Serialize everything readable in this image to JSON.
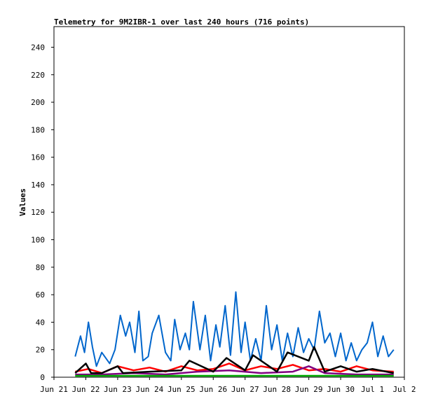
{
  "chart_data": {
    "type": "line",
    "title": "Telemetry for 9M2IBR-1 over last 240 hours (716 points)",
    "ylabel": "Values",
    "xlabel": "",
    "ylim": [
      0,
      255
    ],
    "xlim": [
      "2024-06-21",
      "2024-07-02"
    ],
    "yticks": [
      0,
      20,
      40,
      60,
      80,
      100,
      120,
      140,
      160,
      180,
      200,
      220,
      240
    ],
    "xticks": [
      "Jun 21",
      "Jun 22",
      "Jun 23",
      "Jun 24",
      "Jun 25",
      "Jun 26",
      "Jun 27",
      "Jun 28",
      "Jun 29",
      "Jun 30",
      "Jul 1",
      "Jul 2"
    ],
    "grid": false,
    "legend": "none",
    "series": [
      {
        "color": "#0066cc",
        "x": [
          "2024-06-21T16:00",
          "2024-06-21T20:00",
          "2024-06-21T23:00",
          "2024-06-22T02:00",
          "2024-06-22T05:00",
          "2024-06-22T08:00",
          "2024-06-22T12:00",
          "2024-06-22T18:00",
          "2024-06-22T22:00",
          "2024-06-23T02:00",
          "2024-06-23T06:00",
          "2024-06-23T09:00",
          "2024-06-23T13:00",
          "2024-06-23T16:00",
          "2024-06-23T19:00",
          "2024-06-23T23:00",
          "2024-06-24T02:00",
          "2024-06-24T07:00",
          "2024-06-24T12:00",
          "2024-06-24T16:00",
          "2024-06-24T19:00",
          "2024-06-24T23:00",
          "2024-06-25T03:00",
          "2024-06-25T06:00",
          "2024-06-25T09:00",
          "2024-06-25T14:00",
          "2024-06-25T18:00",
          "2024-06-25T22:00",
          "2024-06-26T02:00",
          "2024-06-26T05:00",
          "2024-06-26T09:00",
          "2024-06-26T13:00",
          "2024-06-26T17:00",
          "2024-06-26T21:00",
          "2024-06-27T00:00",
          "2024-06-27T04:00",
          "2024-06-27T08:00",
          "2024-06-27T12:00",
          "2024-06-27T16:00",
          "2024-06-27T20:00",
          "2024-06-28T00:00",
          "2024-06-28T04:00",
          "2024-06-28T08:00",
          "2024-06-28T12:00",
          "2024-06-28T16:00",
          "2024-06-28T20:00",
          "2024-06-29T00:00",
          "2024-06-29T04:00",
          "2024-06-29T08:00",
          "2024-06-29T12:00",
          "2024-06-29T16:00",
          "2024-06-29T20:00",
          "2024-06-30T00:00",
          "2024-06-30T04:00",
          "2024-06-30T08:00",
          "2024-06-30T12:00",
          "2024-06-30T16:00",
          "2024-06-30T20:00",
          "2024-07-01T00:00",
          "2024-07-01T04:00",
          "2024-07-01T08:00",
          "2024-07-01T12:00",
          "2024-07-01T16:00"
        ],
        "y": [
          15,
          30,
          18,
          40,
          22,
          8,
          18,
          10,
          20,
          45,
          30,
          40,
          18,
          48,
          12,
          15,
          32,
          45,
          18,
          12,
          42,
          20,
          32,
          20,
          55,
          20,
          45,
          12,
          38,
          22,
          52,
          16,
          62,
          18,
          40,
          12,
          28,
          12,
          52,
          20,
          38,
          12,
          32,
          15,
          36,
          18,
          28,
          20,
          48,
          25,
          32,
          15,
          32,
          12,
          25,
          12,
          20,
          25,
          40,
          15,
          30,
          15,
          20
        ]
      },
      {
        "color": "#ff0000",
        "x": [
          "2024-06-21T16:00",
          "2024-06-22T02:00",
          "2024-06-22T12:00",
          "2024-06-23T00:00",
          "2024-06-23T12:00",
          "2024-06-24T00:00",
          "2024-06-24T12:00",
          "2024-06-25T00:00",
          "2024-06-25T12:00",
          "2024-06-26T00:00",
          "2024-06-26T12:00",
          "2024-06-27T00:00",
          "2024-06-27T12:00",
          "2024-06-28T00:00",
          "2024-06-28T12:00",
          "2024-06-29T00:00",
          "2024-06-29T12:00",
          "2024-06-30T00:00",
          "2024-06-30T12:00",
          "2024-07-01T00:00",
          "2024-07-01T16:00"
        ],
        "y": [
          4,
          6,
          3,
          8,
          5,
          7,
          4,
          8,
          5,
          6,
          10,
          5,
          8,
          6,
          9,
          5,
          6,
          4,
          8,
          5,
          4
        ]
      },
      {
        "color": "#800080",
        "x": [
          "2024-06-21T16:00",
          "2024-06-22T12:00",
          "2024-06-23T12:00",
          "2024-06-24T12:00",
          "2024-06-25T12:00",
          "2024-06-26T12:00",
          "2024-06-27T12:00",
          "2024-06-28T12:00",
          "2024-06-29T00:00",
          "2024-06-29T12:00",
          "2024-06-30T12:00",
          "2024-07-01T16:00"
        ],
        "y": [
          2,
          2,
          3,
          2,
          4,
          5,
          3,
          4,
          8,
          3,
          2,
          2
        ]
      },
      {
        "color": "#00aa00",
        "x": [
          "2024-06-21T16:00",
          "2024-06-23T00:00",
          "2024-06-25T00:00",
          "2024-06-27T00:00",
          "2024-06-29T00:00",
          "2024-07-01T16:00"
        ],
        "y": [
          1,
          1,
          1,
          1,
          1,
          1
        ]
      },
      {
        "color": "#000000",
        "x": [
          "2024-06-21T16:00",
          "2024-06-22T00:00",
          "2024-06-22T04:00",
          "2024-06-22T12:00",
          "2024-06-23T00:00",
          "2024-06-23T04:00",
          "2024-06-24T00:00",
          "2024-06-25T00:00",
          "2024-06-25T06:00",
          "2024-06-26T00:00",
          "2024-06-26T10:00",
          "2024-06-27T00:00",
          "2024-06-27T06:00",
          "2024-06-28T00:00",
          "2024-06-28T08:00",
          "2024-06-29T00:00",
          "2024-06-29T04:00",
          "2024-06-29T12:00",
          "2024-06-30T00:00",
          "2024-06-30T12:00",
          "2024-07-01T00:00",
          "2024-07-01T16:00"
        ],
        "y": [
          3,
          10,
          3,
          3,
          8,
          3,
          4,
          5,
          12,
          4,
          14,
          5,
          16,
          4,
          18,
          12,
          22,
          4,
          8,
          4,
          6,
          3
        ]
      }
    ]
  }
}
